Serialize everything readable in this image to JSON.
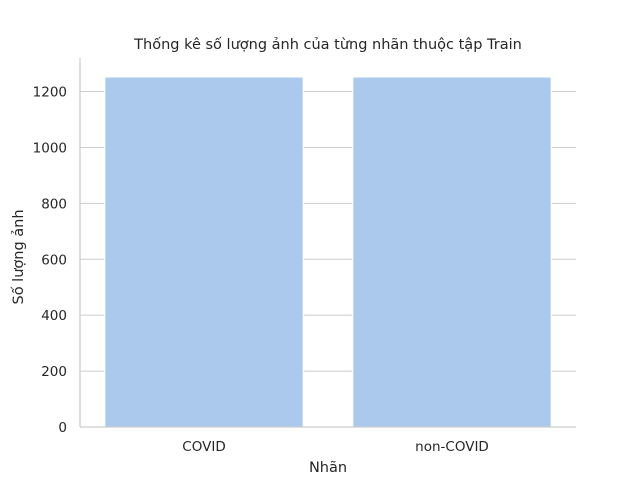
{
  "chart_data": {
    "type": "bar",
    "title": "Thống kê số lượng ảnh của từng nhãn thuộc tập Train",
    "xlabel": "Nhãn",
    "ylabel": "Số lượng ảnh",
    "categories": [
      "COVID",
      "non-COVID"
    ],
    "values": [
      1252,
      1252
    ],
    "ylim": [
      0,
      1320
    ],
    "yticks": [
      0,
      200,
      400,
      600,
      800,
      1000,
      1200
    ],
    "grid": "y",
    "bar_color": "#abc9ec",
    "grid_color": "#cccccc",
    "axis_color": "#cccccc"
  }
}
